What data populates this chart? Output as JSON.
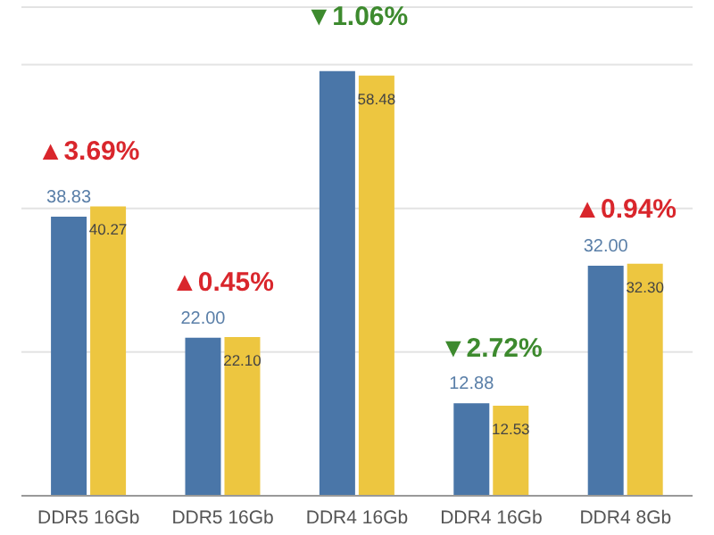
{
  "chart_data": {
    "type": "bar",
    "categories": [
      "DDR5 16Gb",
      "DDR5 16Gb",
      "DDR4 16Gb",
      "DDR4 16Gb",
      "DDR4 8Gb"
    ],
    "series": [
      {
        "color": "#4a76a8",
        "values": [
          38.83,
          22.0,
          59.1,
          12.88,
          32.0
        ],
        "value_labels": [
          "38.83",
          "22.00",
          null,
          "12.88",
          "32.00"
        ]
      },
      {
        "color": "#edc640",
        "values": [
          40.27,
          22.1,
          58.48,
          12.53,
          32.3
        ],
        "value_labels": [
          "40.27",
          "22.10",
          "58.48",
          "12.53",
          "32.30"
        ]
      }
    ],
    "annotations": [
      "▲3.69%",
      "▲0.45%",
      "▼1.06%",
      "▼2.72%",
      "▲0.94%"
    ],
    "ylim": [
      0,
      68
    ],
    "yticks": [
      {
        "value": 20,
        "label": null
      },
      {
        "value": 40,
        "label": null
      },
      {
        "value": 60,
        "label": null
      }
    ],
    "grid": "y",
    "tick_labels": "x",
    "legend": false
  }
}
